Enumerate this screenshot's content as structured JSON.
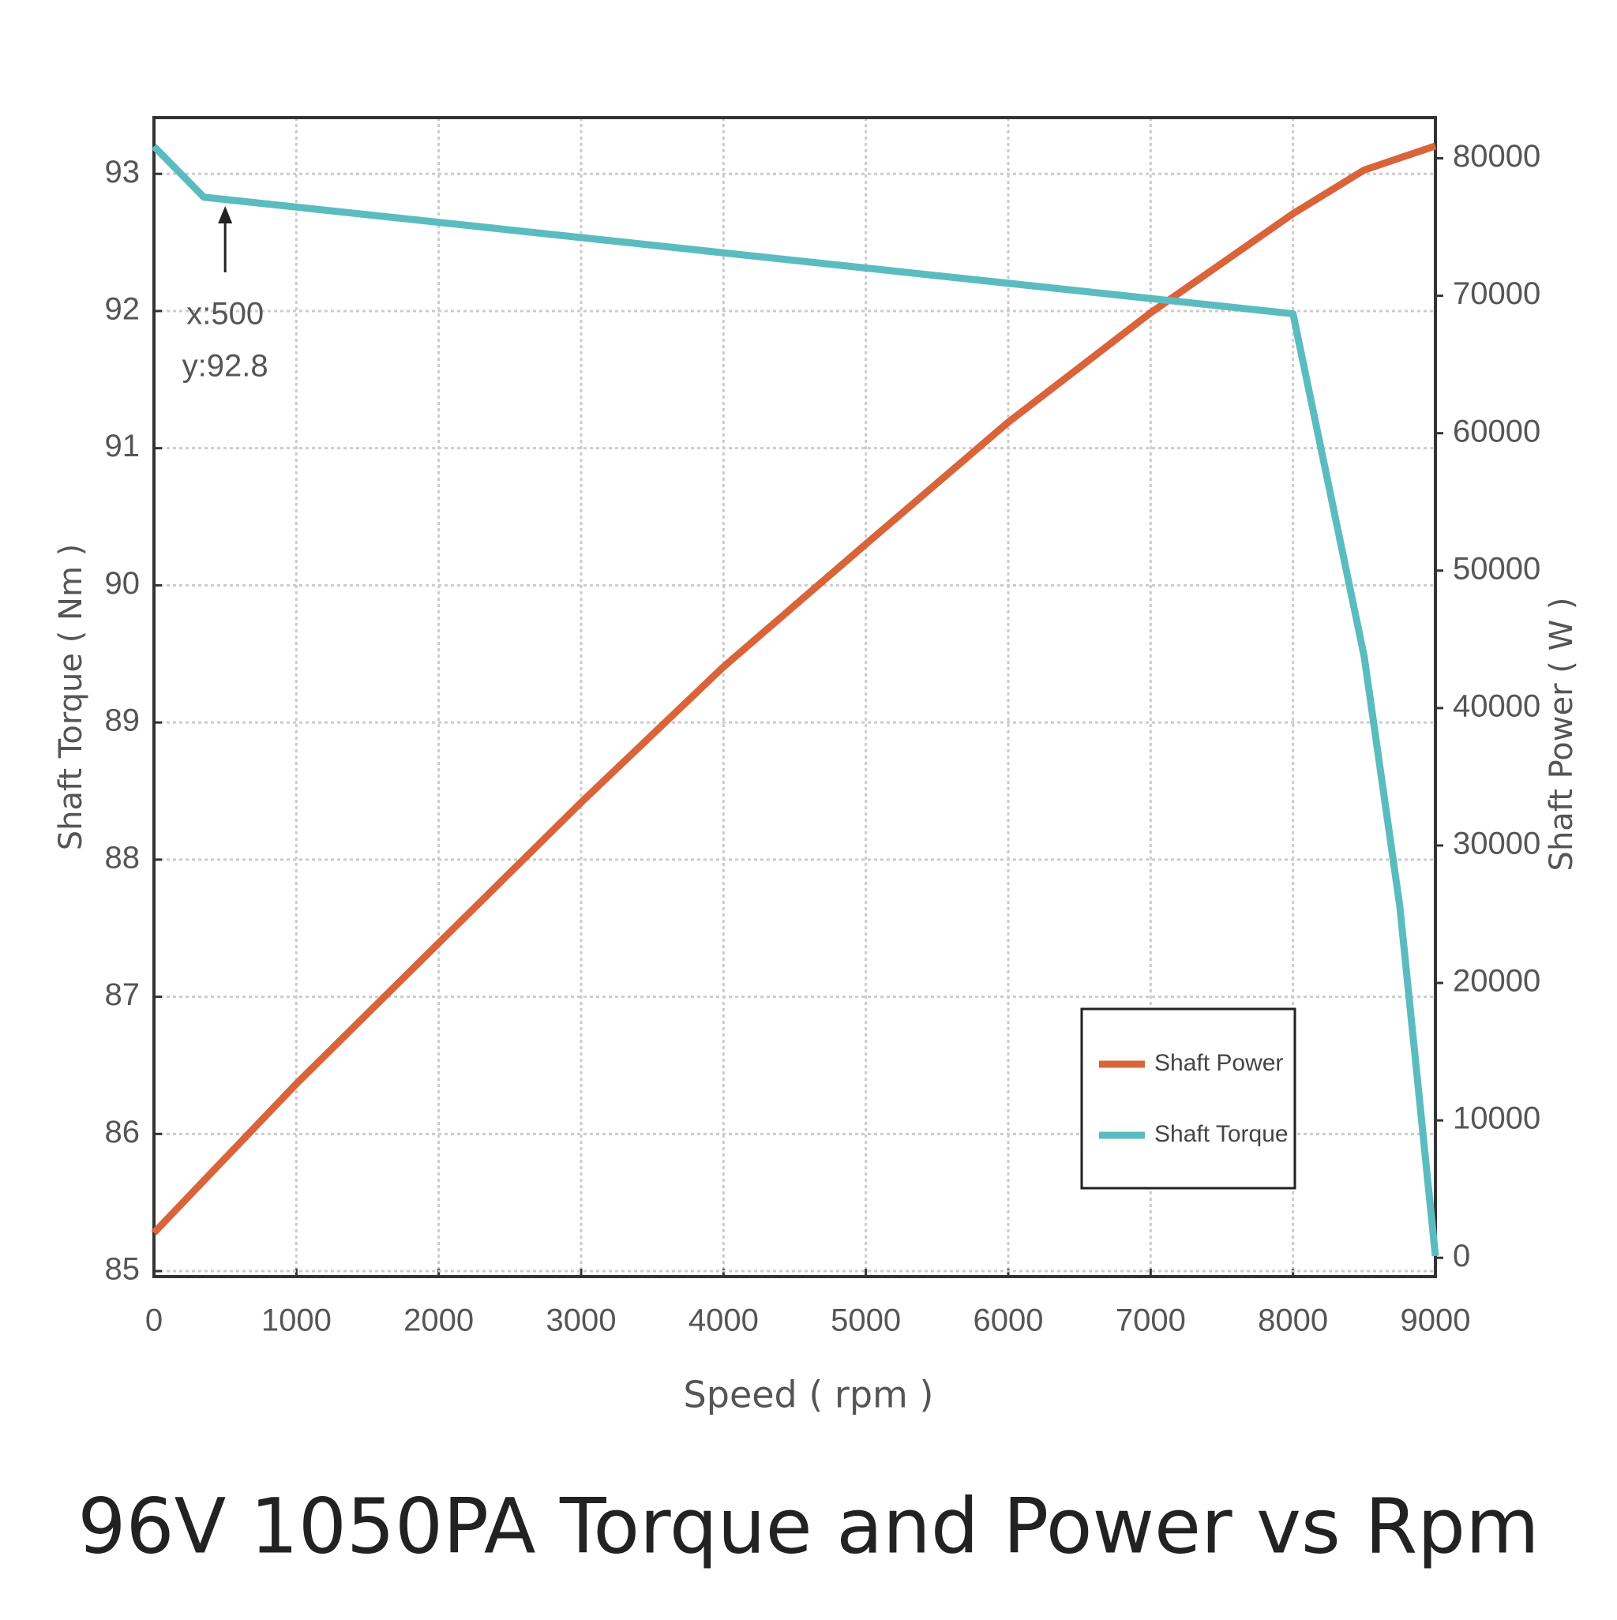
{
  "chart_data": {
    "type": "line",
    "title": "96V 1050PA Torque and Power vs Rpm",
    "x_label": "Speed ( rpm )",
    "y_label": "Shaft Torque ( Nm )",
    "y2_label": "Shaft Power ( W )",
    "xlim": [
      0,
      9000
    ],
    "xticks": [
      0,
      1000,
      2000,
      3000,
      4000,
      5000,
      6000,
      7000,
      8000,
      9000
    ],
    "ylim": [
      84.96,
      93.41
    ],
    "yticks": [
      85,
      86,
      87,
      88,
      89,
      90,
      91,
      92,
      93
    ],
    "y2lim": [
      -1365,
      82960
    ],
    "y2ticks": [
      0,
      10000,
      20000,
      30000,
      40000,
      50000,
      60000,
      70000,
      80000
    ],
    "grid": true,
    "legend": "lower right",
    "series": [
      {
        "name": "Shaft Power",
        "color": "#d9643a",
        "axis": "y2",
        "x": [
          0,
          1000,
          2000,
          3000,
          4000,
          5000,
          6000,
          7000,
          8000,
          8500,
          9000
        ],
        "values": [
          1820,
          12660,
          22900,
          33130,
          43000,
          51930,
          60800,
          68760,
          75970,
          79150,
          80900
        ]
      },
      {
        "name": "Shaft Torque",
        "color": "#5bbcc0",
        "axis": "y",
        "x": [
          0,
          350,
          8000,
          8500,
          8750,
          9000
        ],
        "values": [
          93.2,
          92.83,
          91.98,
          89.48,
          87.66,
          85.11
        ]
      }
    ],
    "annotation": {
      "lines": [
        "x:500",
        "y:92.8"
      ],
      "x": 500,
      "y": 92.8
    }
  }
}
